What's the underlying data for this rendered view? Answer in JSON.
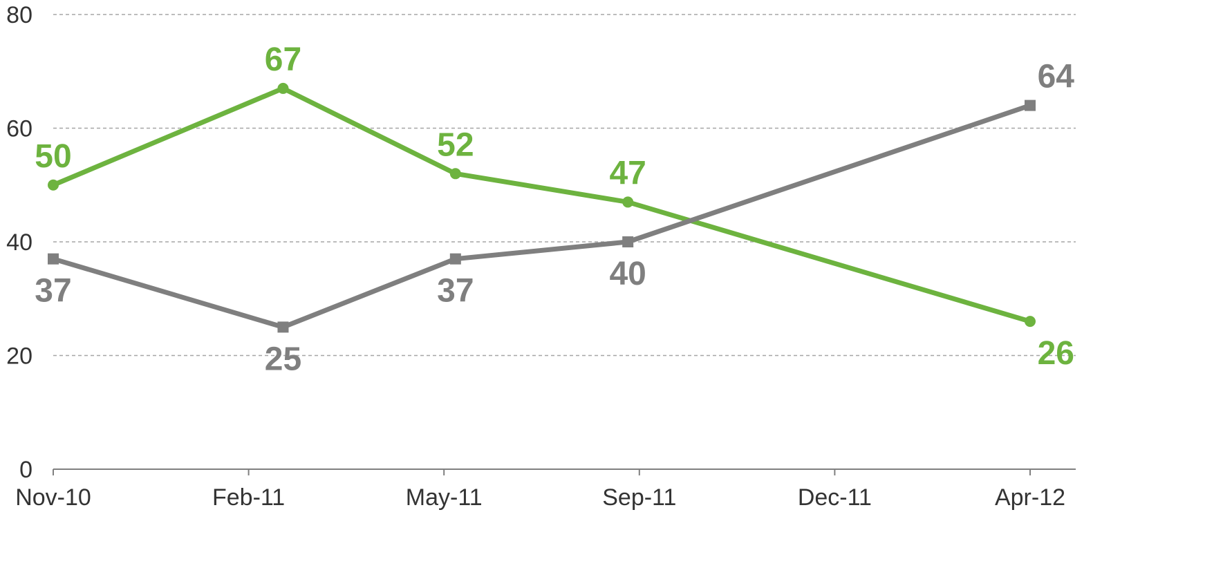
{
  "chart_data": {
    "type": "line",
    "title": "",
    "xlabel": "",
    "ylabel": "",
    "x_axis": {
      "ticks": [
        "Nov-10",
        "Feb-11",
        "May-11",
        "Sep-11",
        "Dec-11",
        "Apr-12"
      ],
      "range": [
        "2010-11",
        "2012-04"
      ]
    },
    "ylim": [
      0,
      80
    ],
    "yticks": [
      0,
      20,
      40,
      60,
      80
    ],
    "grid": "horizontal dashed",
    "legend": "none",
    "series": [
      {
        "color": "#6db33f",
        "marker": "circle",
        "points": [
          {
            "x": "2010-11",
            "y": 50,
            "label": "50"
          },
          {
            "x": "2011-03",
            "y": 67,
            "label": "67"
          },
          {
            "x": "2011-06",
            "y": 52,
            "label": "52"
          },
          {
            "x": "2011-09",
            "y": 47,
            "label": "47"
          },
          {
            "x": "2012-04",
            "y": 26,
            "label": "26"
          }
        ]
      },
      {
        "color": "#7f7f7f",
        "marker": "square",
        "points": [
          {
            "x": "2010-11",
            "y": 37,
            "label": "37"
          },
          {
            "x": "2011-03",
            "y": 25,
            "label": "25"
          },
          {
            "x": "2011-06",
            "y": 37,
            "label": "37"
          },
          {
            "x": "2011-09",
            "y": 40,
            "label": "40"
          },
          {
            "x": "2012-04",
            "y": 64,
            "label": "64"
          }
        ]
      }
    ]
  }
}
